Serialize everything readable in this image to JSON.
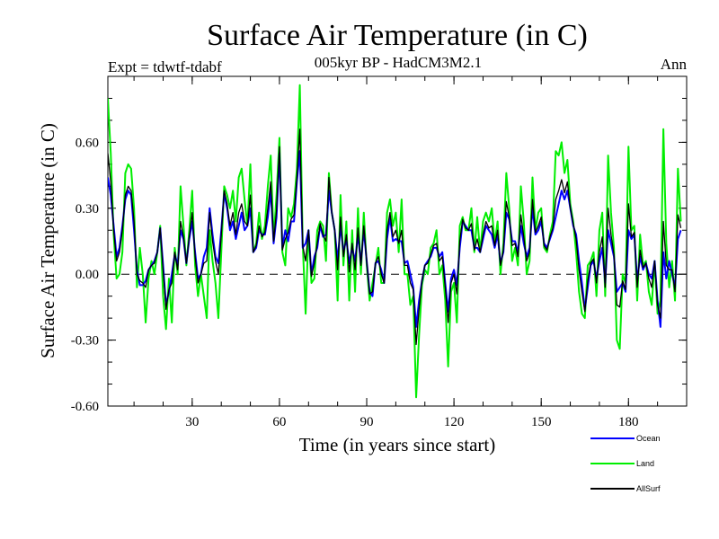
{
  "chart_data": {
    "type": "line",
    "title": "Surface Air Temperature (in C)",
    "subtitle": "005kyr BP - HadCM3M2.1",
    "expt_label": "Expt = tdwtf-tdabf",
    "period_label": "Ann",
    "xlabel": "Time (in years since start)",
    "ylabel": "Surface Air Temperature (in C)",
    "xlim": [
      1,
      200
    ],
    "ylim": [
      -0.6,
      0.9
    ],
    "x_ticks": [
      30,
      60,
      90,
      120,
      150,
      180
    ],
    "x_tick_labels": [
      "30",
      "60",
      "90",
      "120",
      "150",
      "180"
    ],
    "y_ticks": [
      -0.6,
      -0.3,
      0.0,
      0.3,
      0.6
    ],
    "y_tick_labels": [
      "-0.60",
      "-0.30",
      "0.00",
      "0.30",
      "0.60"
    ],
    "zero_line": 0.0,
    "x_start": 1,
    "series": [
      {
        "name": "Ocean",
        "color": "#0000ff",
        "values": [
          0.44,
          0.36,
          0.22,
          0.08,
          0.12,
          0.22,
          0.34,
          0.38,
          0.36,
          0.2,
          0.02,
          -0.05,
          -0.05,
          -0.03,
          0.02,
          0.04,
          0.06,
          0.1,
          0.21,
          0.04,
          -0.14,
          -0.08,
          0.0,
          0.09,
          0.04,
          0.2,
          0.16,
          0.05,
          0.16,
          0.24,
          0.1,
          -0.02,
          0.0,
          0.08,
          0.12,
          0.3,
          0.18,
          0.08,
          0.05,
          0.2,
          0.37,
          0.3,
          0.2,
          0.24,
          0.16,
          0.22,
          0.28,
          0.2,
          0.22,
          0.3,
          0.1,
          0.12,
          0.2,
          0.18,
          0.18,
          0.26,
          0.38,
          0.14,
          0.26,
          0.55,
          0.12,
          0.2,
          0.15,
          0.24,
          0.24,
          0.42,
          0.56,
          0.12,
          0.14,
          0.2,
          0.0,
          0.08,
          0.12,
          0.22,
          0.17,
          0.18,
          0.38,
          0.28,
          0.2,
          0.06,
          0.22,
          0.1,
          0.16,
          0.05,
          0.12,
          0.06,
          0.18,
          0.05,
          0.2,
          0.06,
          -0.08,
          -0.1,
          0.05,
          0.06,
          0.02,
          -0.04,
          0.16,
          0.26,
          0.15,
          0.16,
          0.15,
          0.15,
          0.05,
          0.06,
          0.0,
          -0.06,
          -0.24,
          -0.12,
          -0.03,
          0.04,
          0.06,
          0.08,
          0.12,
          0.12,
          0.08,
          0.1,
          -0.04,
          -0.17,
          -0.02,
          0.02,
          -0.05,
          0.12,
          0.24,
          0.22,
          0.2,
          0.2,
          0.12,
          0.12,
          0.1,
          0.16,
          0.22,
          0.2,
          0.18,
          0.12,
          0.18,
          0.05,
          0.1,
          0.28,
          0.25,
          0.15,
          0.15,
          0.1,
          0.22,
          0.14,
          0.08,
          0.12,
          0.3,
          0.18,
          0.2,
          0.24,
          0.14,
          0.12,
          0.16,
          0.2,
          0.26,
          0.32,
          0.38,
          0.34,
          0.38,
          0.3,
          0.22,
          0.18,
          0.06,
          -0.04,
          -0.16,
          -0.06,
          0.04,
          0.06,
          -0.02,
          0.06,
          0.12,
          -0.04,
          0.2,
          0.14,
          0.08,
          -0.08,
          -0.06,
          -0.04,
          -0.08,
          0.2,
          0.16,
          0.18,
          -0.03,
          0.08,
          0.02,
          0.05,
          0.0,
          -0.02,
          0.06,
          -0.12,
          -0.24,
          0.1,
          -0.02,
          0.06,
          0.0,
          -0.06,
          0.16,
          0.2
        ]
      },
      {
        "name": "Land",
        "color": "#00ee00",
        "values": [
          0.8,
          0.55,
          0.18,
          -0.02,
          0.0,
          0.1,
          0.46,
          0.5,
          0.48,
          0.3,
          -0.06,
          0.12,
          0.0,
          -0.22,
          -0.02,
          0.06,
          0.0,
          0.1,
          0.22,
          -0.1,
          -0.25,
          -0.02,
          -0.22,
          0.12,
          0.0,
          0.4,
          0.22,
          0.04,
          0.2,
          0.38,
          0.04,
          -0.1,
          0.0,
          -0.1,
          -0.2,
          0.2,
          0.06,
          -0.04,
          -0.2,
          0.1,
          0.4,
          0.36,
          0.3,
          0.38,
          0.24,
          0.44,
          0.48,
          0.34,
          0.22,
          0.5,
          0.1,
          0.14,
          0.28,
          0.16,
          0.22,
          0.4,
          0.54,
          0.16,
          0.36,
          0.62,
          0.1,
          0.04,
          0.3,
          0.26,
          0.32,
          0.48,
          0.86,
          0.14,
          -0.18,
          0.2,
          -0.04,
          -0.02,
          0.2,
          0.24,
          0.22,
          0.06,
          0.46,
          0.28,
          0.2,
          -0.12,
          0.36,
          0.04,
          0.24,
          -0.12,
          0.2,
          -0.08,
          0.3,
          0.0,
          0.28,
          0.04,
          -0.12,
          -0.04,
          0.04,
          0.12,
          -0.04,
          -0.04,
          0.28,
          0.34,
          0.22,
          0.28,
          0.1,
          0.34,
          0.0,
          0.0,
          -0.14,
          -0.1,
          -0.56,
          -0.28,
          -0.05,
          0.02,
          0.0,
          0.12,
          0.14,
          0.2,
          0.0,
          0.04,
          -0.12,
          -0.42,
          -0.08,
          -0.04,
          -0.22,
          0.22,
          0.26,
          0.2,
          0.2,
          0.3,
          0.1,
          0.26,
          0.1,
          0.24,
          0.28,
          0.24,
          0.3,
          0.14,
          0.24,
          0.0,
          0.14,
          0.46,
          0.3,
          0.06,
          0.12,
          0.04,
          0.4,
          0.24,
          0.0,
          0.06,
          0.44,
          0.2,
          0.28,
          0.3,
          0.12,
          0.1,
          0.18,
          0.24,
          0.56,
          0.54,
          0.6,
          0.46,
          0.52,
          0.32,
          0.24,
          0.1,
          -0.08,
          -0.18,
          -0.2,
          0.04,
          0.06,
          0.1,
          -0.1,
          0.2,
          0.28,
          -0.1,
          0.54,
          0.28,
          0.12,
          -0.3,
          -0.34,
          0.0,
          -0.04,
          0.58,
          0.2,
          0.22,
          -0.12,
          0.18,
          0.04,
          0.06,
          -0.08,
          -0.14,
          0.06,
          -0.18,
          -0.12,
          0.66,
          0.14,
          -0.06,
          0.06,
          -0.12,
          0.48,
          0.24
        ]
      },
      {
        "name": "AllSurf",
        "color": "#000000",
        "values": [
          0.55,
          0.42,
          0.2,
          0.06,
          0.1,
          0.2,
          0.36,
          0.4,
          0.38,
          0.24,
          0.0,
          -0.03,
          -0.04,
          -0.06,
          0.02,
          0.04,
          0.05,
          0.1,
          0.21,
          0.02,
          -0.16,
          -0.07,
          -0.04,
          0.1,
          0.02,
          0.24,
          0.17,
          0.05,
          0.17,
          0.28,
          0.08,
          -0.04,
          0.0,
          0.05,
          0.06,
          0.28,
          0.15,
          0.06,
          0.0,
          0.18,
          0.38,
          0.32,
          0.22,
          0.28,
          0.18,
          0.28,
          0.32,
          0.24,
          0.22,
          0.36,
          0.1,
          0.13,
          0.22,
          0.17,
          0.19,
          0.3,
          0.42,
          0.15,
          0.29,
          0.58,
          0.11,
          0.16,
          0.19,
          0.25,
          0.27,
          0.44,
          0.66,
          0.13,
          0.06,
          0.2,
          -0.01,
          0.05,
          0.14,
          0.23,
          0.18,
          0.15,
          0.44,
          0.28,
          0.2,
          0.02,
          0.26,
          0.08,
          0.18,
          0.01,
          0.14,
          0.02,
          0.21,
          0.04,
          0.22,
          0.06,
          -0.09,
          -0.08,
          0.05,
          0.08,
          0.0,
          -0.04,
          0.2,
          0.28,
          0.17,
          0.2,
          0.14,
          0.2,
          0.04,
          0.04,
          -0.04,
          -0.07,
          -0.32,
          -0.16,
          -0.03,
          0.04,
          0.05,
          0.09,
          0.13,
          0.14,
          0.06,
          0.08,
          -0.06,
          -0.22,
          -0.04,
          0.0,
          -0.09,
          0.15,
          0.25,
          0.21,
          0.2,
          0.23,
          0.11,
          0.16,
          0.1,
          0.18,
          0.24,
          0.21,
          0.22,
          0.13,
          0.2,
          0.04,
          0.11,
          0.33,
          0.26,
          0.13,
          0.14,
          0.08,
          0.27,
          0.17,
          0.06,
          0.1,
          0.34,
          0.19,
          0.22,
          0.26,
          0.13,
          0.11,
          0.17,
          0.21,
          0.34,
          0.38,
          0.43,
          0.37,
          0.42,
          0.3,
          0.23,
          0.16,
          0.02,
          -0.08,
          -0.17,
          -0.03,
          0.05,
          0.07,
          -0.04,
          0.1,
          0.17,
          -0.06,
          0.3,
          0.18,
          0.09,
          -0.14,
          -0.15,
          -0.03,
          -0.07,
          0.32,
          0.17,
          0.19,
          -0.06,
          0.11,
          0.03,
          0.05,
          -0.02,
          -0.06,
          0.06,
          -0.14,
          -0.2,
          0.24,
          0.04,
          0.02,
          0.02,
          -0.08,
          0.27,
          0.21
        ]
      }
    ],
    "legend": [
      "Ocean",
      "Land",
      "AllSurf"
    ],
    "legend_position": "bottom-right"
  }
}
